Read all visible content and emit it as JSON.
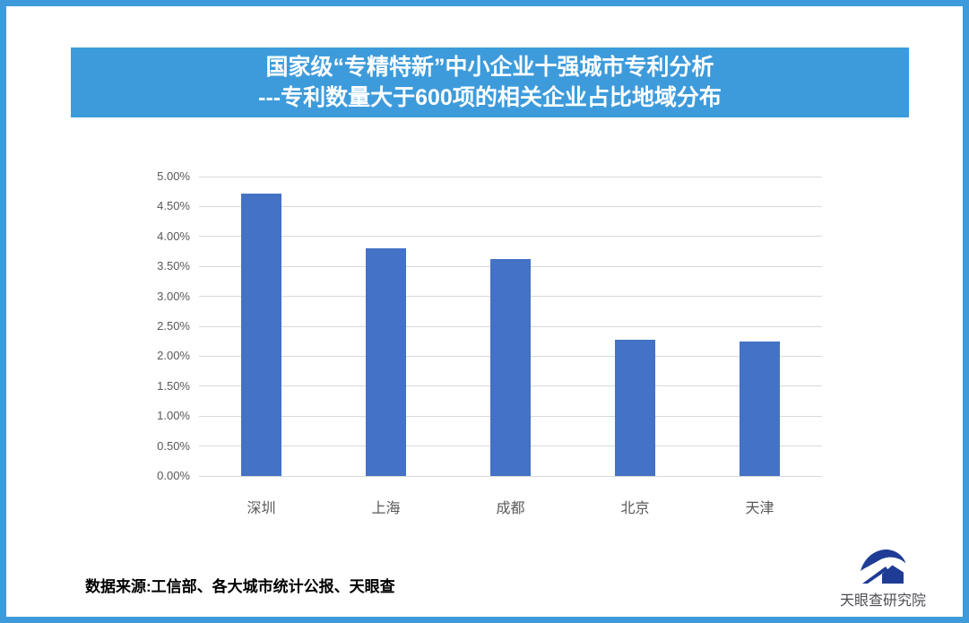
{
  "header": {
    "title_line1": "国家级“专精特新”中小企业十强城市专利分析",
    "title_line2": "---专利数量大于600项的相关企业占比地域分布"
  },
  "chart_data": {
    "type": "bar",
    "title": "国家级“专精特新”中小企业十强城市专利分析---专利数量大于600项的相关企业占比地域分布",
    "categories": [
      "深圳",
      "上海",
      "成都",
      "北京",
      "天津"
    ],
    "values": [
      4.72,
      3.81,
      3.62,
      2.27,
      2.24
    ],
    "value_unit": "%",
    "xlabel": "",
    "ylabel": "",
    "ylim": [
      0,
      5
    ],
    "ytick_labels": [
      "0.00%",
      "0.50%",
      "1.00%",
      "1.50%",
      "2.00%",
      "2.50%",
      "3.00%",
      "3.50%",
      "4.00%",
      "4.50%",
      "5.00%"
    ],
    "grid": true,
    "legend": false,
    "bar_color": "#4472C4"
  },
  "footer": {
    "source": "数据来源:工信部、各大城市统计公报、天眼查"
  },
  "brand": {
    "name": "天眼查研究院"
  },
  "colors": {
    "accent_blue": "#3D9BDB",
    "bar_blue": "#4472C4",
    "gridline_gray": "#D9D9D9",
    "tick_gray": "#595959",
    "logo_navy": "#1E3C96"
  },
  "icons": {
    "brand_logo": "tianyancha-eye-logo"
  }
}
